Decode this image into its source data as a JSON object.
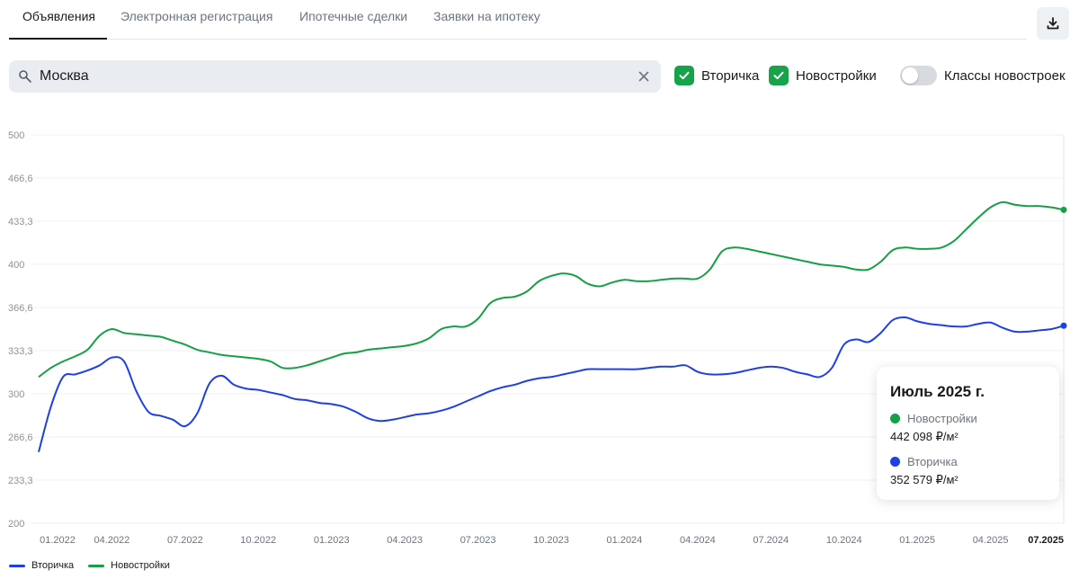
{
  "tabs": [
    {
      "label": "Объявления",
      "active": true
    },
    {
      "label": "Электронная регистрация",
      "active": false
    },
    {
      "label": "Ипотечные сделки",
      "active": false
    },
    {
      "label": "Заявки на ипотеку",
      "active": false
    }
  ],
  "download": {
    "icon": "download-icon"
  },
  "search": {
    "value": "Москва",
    "icon": "search-icon",
    "clear_icon": "close-icon"
  },
  "filters": {
    "secondary": {
      "label": "Вторичка",
      "checked": true
    },
    "newbuild": {
      "label": "Новостройки",
      "checked": true
    },
    "classes": {
      "label": "Классы новостроек",
      "on": false
    }
  },
  "colors": {
    "secondary": "#1e40e6",
    "newbuild": "#15a046",
    "checkbox": "#16a34a"
  },
  "tooltip": {
    "title": "Июль 2025 г.",
    "rows": [
      {
        "name": "Новостройки",
        "value": "442 098 ₽/м²"
      },
      {
        "name": "Вторичка",
        "value": "352 579 ₽/м²"
      }
    ]
  },
  "chart_data": {
    "type": "line",
    "y_ticks": [
      "500",
      "466,6",
      "433,3",
      "400",
      "366,6",
      "333,3",
      "300",
      "266,6",
      "233,3",
      "200"
    ],
    "ylim": [
      200,
      500
    ],
    "x_ticks": [
      "01.2022",
      "04.2022",
      "07.2022",
      "10.2022",
      "01.2023",
      "04.2023",
      "07.2023",
      "10.2023",
      "01.2024",
      "04.2024",
      "07.2024",
      "10.2024",
      "01.2025",
      "04.2025",
      "07.2025"
    ],
    "active_x": "07.2025",
    "grid": true,
    "legend": "bottom-left",
    "series": [
      {
        "name": "Вторичка",
        "points": [
          [
            "2022-01",
            255
          ],
          [
            "2022-01.5",
            290
          ],
          [
            "2022-02",
            313
          ],
          [
            "2022-02.5",
            315
          ],
          [
            "2022-03",
            318
          ],
          [
            "2022-03.5",
            322
          ],
          [
            "2022-04",
            328
          ],
          [
            "2022-04.5",
            325
          ],
          [
            "2022-05",
            302
          ],
          [
            "2022-05.5",
            286
          ],
          [
            "2022-06",
            283
          ],
          [
            "2022-06.5",
            280
          ],
          [
            "2022-07",
            275
          ],
          [
            "2022-07.5",
            285
          ],
          [
            "2022-08",
            308
          ],
          [
            "2022-08.5",
            314
          ],
          [
            "2022-09",
            307
          ],
          [
            "2022-09.5",
            304
          ],
          [
            "2022-10",
            303
          ],
          [
            "2022-10.5",
            301
          ],
          [
            "2022-11",
            299
          ],
          [
            "2022-11.5",
            296
          ],
          [
            "2022-12",
            295
          ],
          [
            "2022-12.5",
            293
          ],
          [
            "2023-01",
            292
          ],
          [
            "2023-01.5",
            290
          ],
          [
            "2023-02",
            286
          ],
          [
            "2023-02.5",
            281
          ],
          [
            "2023-03",
            279
          ],
          [
            "2023-03.5",
            280
          ],
          [
            "2023-04",
            282
          ],
          [
            "2023-04.5",
            284
          ],
          [
            "2023-05",
            285
          ],
          [
            "2023-05.5",
            287
          ],
          [
            "2023-06",
            290
          ],
          [
            "2023-06.5",
            294
          ],
          [
            "2023-07",
            298
          ],
          [
            "2023-07.5",
            302
          ],
          [
            "2023-08",
            305
          ],
          [
            "2023-08.5",
            307
          ],
          [
            "2023-09",
            310
          ],
          [
            "2023-09.5",
            312
          ],
          [
            "2023-10",
            313
          ],
          [
            "2023-10.5",
            315
          ],
          [
            "2023-11",
            317
          ],
          [
            "2023-11.5",
            319
          ],
          [
            "2023-12",
            319
          ],
          [
            "2023-12.5",
            319
          ],
          [
            "2024-01",
            319
          ],
          [
            "2024-01.5",
            319
          ],
          [
            "2024-02",
            320
          ],
          [
            "2024-02.5",
            321
          ],
          [
            "2024-03",
            321
          ],
          [
            "2024-03.5",
            322
          ],
          [
            "2024-04",
            317
          ],
          [
            "2024-04.5",
            315
          ],
          [
            "2024-05",
            315
          ],
          [
            "2024-05.5",
            316
          ],
          [
            "2024-06",
            318
          ],
          [
            "2024-06.5",
            320
          ],
          [
            "2024-07",
            321
          ],
          [
            "2024-07.5",
            320
          ],
          [
            "2024-08",
            317
          ],
          [
            "2024-08.5",
            315
          ],
          [
            "2024-09",
            313
          ],
          [
            "2024-09.5",
            320
          ],
          [
            "2024-10",
            338
          ],
          [
            "2024-10.5",
            342
          ],
          [
            "2024-11",
            340
          ],
          [
            "2024-11.5",
            347
          ],
          [
            "2024-12",
            357
          ],
          [
            "2024-12.5",
            359
          ],
          [
            "2025-01",
            356
          ],
          [
            "2025-01.5",
            354
          ],
          [
            "2025-02",
            353
          ],
          [
            "2025-02.5",
            352
          ],
          [
            "2025-03",
            352
          ],
          [
            "2025-03.5",
            354
          ],
          [
            "2025-04",
            355
          ],
          [
            "2025-04.5",
            351
          ],
          [
            "2025-05",
            348
          ],
          [
            "2025-05.5",
            348
          ],
          [
            "2025-06",
            349
          ],
          [
            "2025-06.5",
            350
          ],
          [
            "2025-07",
            352.6
          ]
        ]
      },
      {
        "name": "Новостройки",
        "points": [
          [
            "2022-01",
            313
          ],
          [
            "2022-01.5",
            320
          ],
          [
            "2022-02",
            325
          ],
          [
            "2022-02.5",
            329
          ],
          [
            "2022-03",
            334
          ],
          [
            "2022-03.5",
            345
          ],
          [
            "2022-04",
            350
          ],
          [
            "2022-04.5",
            347
          ],
          [
            "2022-05",
            346
          ],
          [
            "2022-05.5",
            345
          ],
          [
            "2022-06",
            344
          ],
          [
            "2022-06.5",
            341
          ],
          [
            "2022-07",
            338
          ],
          [
            "2022-07.5",
            334
          ],
          [
            "2022-08",
            332
          ],
          [
            "2022-08.5",
            330
          ],
          [
            "2022-09",
            329
          ],
          [
            "2022-09.5",
            328
          ],
          [
            "2022-10",
            327
          ],
          [
            "2022-10.5",
            325
          ],
          [
            "2022-11",
            320
          ],
          [
            "2022-11.5",
            320
          ],
          [
            "2022-12",
            322
          ],
          [
            "2022-12.5",
            325
          ],
          [
            "2023-01",
            328
          ],
          [
            "2023-01.5",
            331
          ],
          [
            "2023-02",
            332
          ],
          [
            "2023-02.5",
            334
          ],
          [
            "2023-03",
            335
          ],
          [
            "2023-03.5",
            336
          ],
          [
            "2023-04",
            337
          ],
          [
            "2023-04.5",
            339
          ],
          [
            "2023-05",
            343
          ],
          [
            "2023-05.5",
            350
          ],
          [
            "2023-06",
            352
          ],
          [
            "2023-06.5",
            352
          ],
          [
            "2023-07",
            358
          ],
          [
            "2023-07.5",
            370
          ],
          [
            "2023-08",
            374
          ],
          [
            "2023-08.5",
            375
          ],
          [
            "2023-09",
            379
          ],
          [
            "2023-09.5",
            387
          ],
          [
            "2023-10",
            391
          ],
          [
            "2023-10.5",
            393
          ],
          [
            "2023-11",
            391
          ],
          [
            "2023-11.5",
            385
          ],
          [
            "2023-12",
            383
          ],
          [
            "2023-12.5",
            386
          ],
          [
            "2024-01",
            388
          ],
          [
            "2024-01.5",
            387
          ],
          [
            "2024-02",
            387
          ],
          [
            "2024-02.5",
            388
          ],
          [
            "2024-03",
            389
          ],
          [
            "2024-03.5",
            389
          ],
          [
            "2024-04",
            389
          ],
          [
            "2024-04.5",
            396
          ],
          [
            "2024-05",
            410
          ],
          [
            "2024-05.5",
            413
          ],
          [
            "2024-06",
            412
          ],
          [
            "2024-06.5",
            410
          ],
          [
            "2024-07",
            408
          ],
          [
            "2024-07.5",
            406
          ],
          [
            "2024-08",
            404
          ],
          [
            "2024-08.5",
            402
          ],
          [
            "2024-09",
            400
          ],
          [
            "2024-09.5",
            399
          ],
          [
            "2024-10",
            398
          ],
          [
            "2024-10.5",
            396
          ],
          [
            "2024-11",
            396
          ],
          [
            "2024-11.5",
            402
          ],
          [
            "2024-12",
            411
          ],
          [
            "2024-12.5",
            413
          ],
          [
            "2025-01",
            412
          ],
          [
            "2025-01.5",
            412
          ],
          [
            "2025-02",
            413
          ],
          [
            "2025-02.5",
            418
          ],
          [
            "2025-03",
            427
          ],
          [
            "2025-03.5",
            436
          ],
          [
            "2025-04",
            444
          ],
          [
            "2025-04.5",
            448
          ],
          [
            "2025-05",
            446
          ],
          [
            "2025-05.5",
            445
          ],
          [
            "2025-06",
            445
          ],
          [
            "2025-06.5",
            444
          ],
          [
            "2025-07",
            442.1
          ]
        ]
      }
    ]
  }
}
